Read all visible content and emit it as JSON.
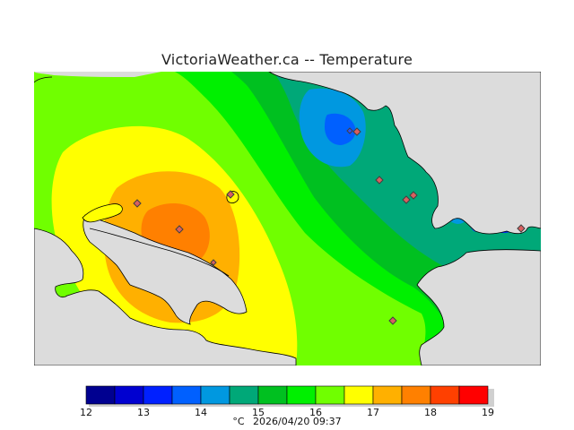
{
  "title": "VictoriaWeather.ca -- Temperature",
  "colors": {
    "land_outside": "#dcdcdc",
    "coast": "#000000",
    "station_fill": "#d86060",
    "station_stroke": "#404040"
  },
  "legend": {
    "ticks": [
      "12",
      "13",
      "14",
      "15",
      "16",
      "17",
      "18",
      "19"
    ],
    "bins": [
      {
        "from": 12.0,
        "to": 12.5,
        "color": "#000090"
      },
      {
        "from": 12.5,
        "to": 13.0,
        "color": "#0000d0"
      },
      {
        "from": 13.0,
        "to": 13.5,
        "color": "#0020ff"
      },
      {
        "from": 13.5,
        "to": 14.0,
        "color": "#0060ff"
      },
      {
        "from": 14.0,
        "to": 14.5,
        "color": "#0098e0"
      },
      {
        "from": 14.5,
        "to": 15.0,
        "color": "#00a878"
      },
      {
        "from": 15.0,
        "to": 15.5,
        "color": "#00c020"
      },
      {
        "from": 15.5,
        "to": 16.0,
        "color": "#00f000"
      },
      {
        "from": 16.0,
        "to": 16.5,
        "color": "#70ff00"
      },
      {
        "from": 16.5,
        "to": 17.0,
        "color": "#ffff00"
      },
      {
        "from": 17.0,
        "to": 17.5,
        "color": "#ffb000"
      },
      {
        "from": 17.5,
        "to": 18.0,
        "color": "#ff8000"
      },
      {
        "from": 18.0,
        "to": 18.5,
        "color": "#ff4000"
      },
      {
        "from": 18.5,
        "to": 19.0,
        "color": "#ff0000"
      }
    ]
  },
  "footer": {
    "unit": "°C",
    "timestamp": "2026/04/20 09:37"
  }
}
